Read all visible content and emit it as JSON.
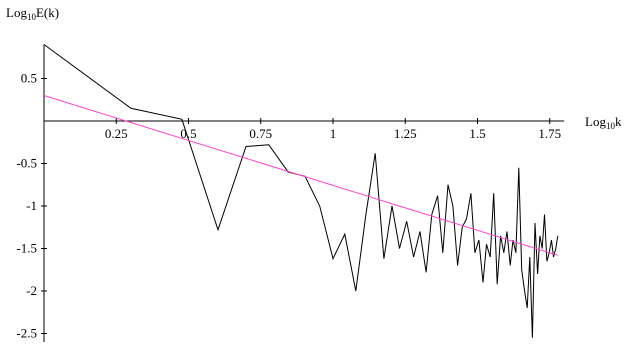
{
  "chart_data": {
    "type": "line",
    "title": "",
    "xlabel": {
      "pre": "Log",
      "sub": "10",
      "post": "k"
    },
    "ylabel": {
      "pre": "Log",
      "sub": "10",
      "post": "E(k)"
    },
    "xlim": [
      0,
      1.8
    ],
    "ylim": [
      -2.6,
      0.9
    ],
    "x_ticks": [
      {
        "value": 0.25,
        "label": "0.25"
      },
      {
        "value": 0.5,
        "label": "0.5"
      },
      {
        "value": 0.75,
        "label": "0.75"
      },
      {
        "value": 1.0,
        "label": "1"
      },
      {
        "value": 1.25,
        "label": "1.25"
      },
      {
        "value": 1.5,
        "label": "1.5"
      },
      {
        "value": 1.75,
        "label": "1.75"
      }
    ],
    "y_ticks": [
      {
        "value": 0.5,
        "label": "0.5"
      },
      {
        "value": -0.5,
        "label": "-0.5"
      },
      {
        "value": -1.0,
        "label": "-1"
      },
      {
        "value": -1.5,
        "label": "-1.5"
      },
      {
        "value": -2.0,
        "label": "-2"
      },
      {
        "value": -2.5,
        "label": "-2.5"
      }
    ],
    "grid": false,
    "series": [
      {
        "color": "#000000",
        "x": [
          0.0,
          0.301,
          0.477,
          0.602,
          0.699,
          0.778,
          0.845,
          0.903,
          0.954,
          1.0,
          1.041,
          1.079,
          1.114,
          1.146,
          1.176,
          1.204,
          1.23,
          1.255,
          1.279,
          1.301,
          1.322,
          1.342,
          1.362,
          1.38,
          1.398,
          1.415,
          1.431,
          1.447,
          1.462,
          1.477,
          1.491,
          1.505,
          1.519,
          1.531,
          1.544,
          1.556,
          1.568,
          1.58,
          1.591,
          1.602,
          1.613,
          1.623,
          1.633,
          1.643,
          1.653,
          1.663,
          1.672,
          1.681,
          1.69,
          1.699,
          1.708,
          1.716,
          1.724,
          1.732,
          1.74,
          1.748,
          1.756,
          1.763,
          1.771,
          1.778
        ],
        "y": [
          0.9,
          0.15,
          0.02,
          -1.28,
          -0.3,
          -0.28,
          -0.6,
          -0.65,
          -1.0,
          -1.62,
          -1.33,
          -2.0,
          -1.1,
          -0.38,
          -1.62,
          -1.0,
          -1.5,
          -1.18,
          -1.6,
          -1.3,
          -1.78,
          -1.1,
          -0.88,
          -1.55,
          -0.75,
          -1.0,
          -1.7,
          -1.25,
          -1.15,
          -0.85,
          -1.55,
          -1.4,
          -1.9,
          -1.45,
          -1.6,
          -0.85,
          -1.92,
          -1.35,
          -1.55,
          -1.3,
          -1.7,
          -1.4,
          -1.55,
          -0.55,
          -1.75,
          -2.0,
          -2.2,
          -1.6,
          -2.55,
          -1.2,
          -1.8,
          -1.35,
          -1.5,
          -1.1,
          -1.65,
          -1.55,
          -1.4,
          -1.6,
          -1.5,
          -1.35
        ]
      },
      {
        "color": "#ff44cc",
        "x": [
          0.0,
          1.778
        ],
        "y": [
          0.3,
          -1.58
        ]
      }
    ]
  }
}
